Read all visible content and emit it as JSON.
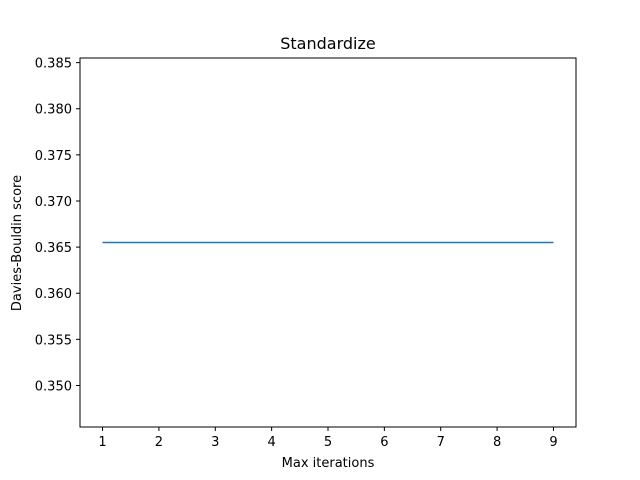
{
  "chart_data": {
    "type": "line",
    "title": "Standardize",
    "xlabel": "Max iterations",
    "ylabel": "Davies-Bouldin score",
    "x": [
      1,
      2,
      3,
      4,
      5,
      6,
      7,
      8,
      9
    ],
    "series": [
      {
        "values": [
          0.3655,
          0.3655,
          0.3655,
          0.3655,
          0.3655,
          0.3655,
          0.3655,
          0.3655,
          0.3655
        ],
        "color": "#1f77b4"
      }
    ],
    "xticks": [
      1,
      2,
      3,
      4,
      5,
      6,
      7,
      8,
      9
    ],
    "yticks": [
      "0.350",
      "0.355",
      "0.360",
      "0.365",
      "0.370",
      "0.375",
      "0.380",
      "0.385"
    ],
    "xlim": [
      0.6,
      9.4
    ],
    "ylim": [
      0.3455,
      0.3855
    ],
    "grid": false
  }
}
